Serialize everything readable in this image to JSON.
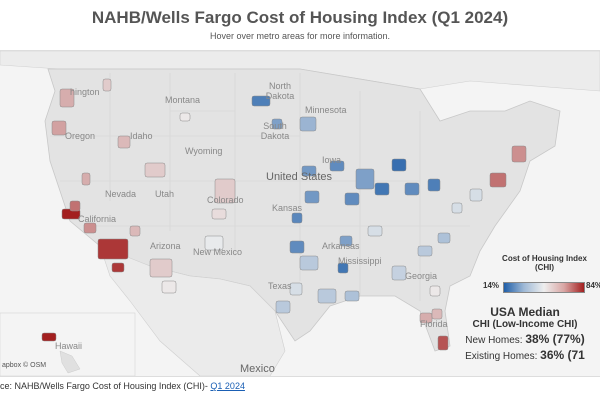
{
  "title": "NAHB/Wells Fargo Cost of Housing Index (Q1 2024)",
  "subtitle": "Hover over metro areas for more information.",
  "map": {
    "labels": {
      "usa": "United States",
      "mexico": "Mexico",
      "hawaii": "Hawaii",
      "montana": "Montana",
      "wyoming": "Wyoming",
      "idaho": "Idaho",
      "oregon": "Oregon",
      "washington": "hington",
      "nevada": "Nevada",
      "utah": "Utah",
      "california": "California",
      "arizona": "Arizona",
      "new_mexico": "New Mexico",
      "colorado": "Colorado",
      "north_dakota": "North Dakota",
      "south_dakota": "South Dakota",
      "minnesota": "Minnesota",
      "iowa": "Iowa",
      "kansas": "Kansas",
      "texas": "Texas",
      "arkansas": "Arkansas",
      "mississippi": "Mississippi",
      "georgia": "Georgia",
      "florida": "Florida"
    },
    "attribution": "apbox © OSM",
    "colors": {
      "low": "#1f5ea8",
      "mid": "#eeeeee",
      "high": "#a31f1f",
      "land": "#e3e3e3",
      "water": "#f4f4f4"
    },
    "metros": [
      {
        "id": "seattle",
        "value": 60
      },
      {
        "id": "portland",
        "value": 62
      },
      {
        "id": "spokane",
        "value": 55
      },
      {
        "id": "boise",
        "value": 58
      },
      {
        "id": "salt-lake",
        "value": 55
      },
      {
        "id": "reno",
        "value": 60
      },
      {
        "id": "sf-bay",
        "value": 84
      },
      {
        "id": "sacramento",
        "value": 70
      },
      {
        "id": "fresno",
        "value": 65
      },
      {
        "id": "los-angeles",
        "value": 80
      },
      {
        "id": "san-diego",
        "value": 80
      },
      {
        "id": "phoenix",
        "value": 55
      },
      {
        "id": "tucson",
        "value": 50
      },
      {
        "id": "las-vegas",
        "value": 58
      },
      {
        "id": "denver",
        "value": 55
      },
      {
        "id": "colorado-springs",
        "value": 52
      },
      {
        "id": "albuquerque",
        "value": 48
      },
      {
        "id": "billings",
        "value": 50
      },
      {
        "id": "fargo",
        "value": 22
      },
      {
        "id": "sioux-falls",
        "value": 30
      },
      {
        "id": "minneapolis",
        "value": 35
      },
      {
        "id": "des-moines",
        "value": 25
      },
      {
        "id": "omaha",
        "value": 28
      },
      {
        "id": "kansas-city",
        "value": 28
      },
      {
        "id": "wichita",
        "value": 24
      },
      {
        "id": "oklahoma-city",
        "value": 25
      },
      {
        "id": "dallas",
        "value": 40
      },
      {
        "id": "houston",
        "value": 40
      },
      {
        "id": "austin",
        "value": 45
      },
      {
        "id": "san-antonio",
        "value": 40
      },
      {
        "id": "st-louis",
        "value": 25
      },
      {
        "id": "chicago",
        "value": 30
      },
      {
        "id": "indianapolis",
        "value": 20
      },
      {
        "id": "detroit",
        "value": 18
      },
      {
        "id": "columbus",
        "value": 25
      },
      {
        "id": "pittsburgh",
        "value": 22
      },
      {
        "id": "memphis",
        "value": 30
      },
      {
        "id": "nashville",
        "value": 45
      },
      {
        "id": "atlanta",
        "value": 42
      },
      {
        "id": "charlotte",
        "value": 40
      },
      {
        "id": "raleigh",
        "value": 38
      },
      {
        "id": "dc",
        "value": 45
      },
      {
        "id": "philadelphia",
        "value": 45
      },
      {
        "id": "nyc",
        "value": 70
      },
      {
        "id": "boston",
        "value": 65
      },
      {
        "id": "miami",
        "value": 75
      },
      {
        "id": "tampa",
        "value": 60
      },
      {
        "id": "orlando",
        "value": 58
      },
      {
        "id": "jacksonville",
        "value": 50
      },
      {
        "id": "new-orleans",
        "value": 38
      },
      {
        "id": "jackson",
        "value": 20
      },
      {
        "id": "honolulu",
        "value": 84
      }
    ]
  },
  "legend": {
    "title": "Cost of Housing Index",
    "subtitle": "(CHI)",
    "min": "14%",
    "max": "84%"
  },
  "median": {
    "heading": "USA Median",
    "sub": "CHI (Low-Income CHI)",
    "new_label": "New Homes:",
    "new_value": "38% (77%)",
    "existing_label": "Existing Homes:",
    "existing_value": "36% (71"
  },
  "source": {
    "prefix": "ce: NAHB/Wells Fargo Cost of Housing Index (CHI)-",
    "link": "Q1 2024"
  }
}
